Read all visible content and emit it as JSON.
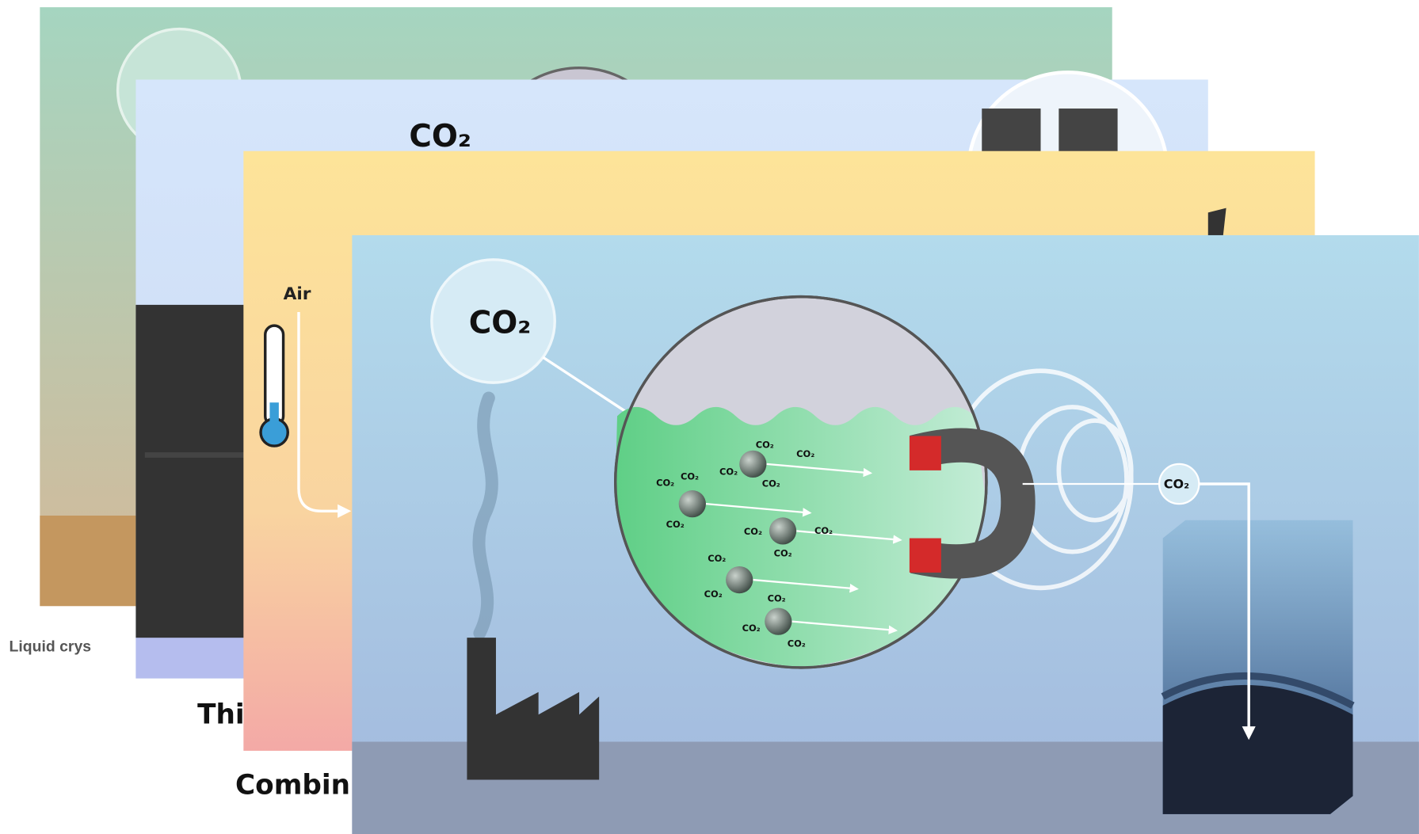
{
  "captions": [
    "Liquid crys",
    "Thi",
    "Combin"
  ],
  "card2": {
    "label": "CO₂"
  },
  "card3": {
    "label": "Air"
  },
  "main": {
    "bubble_label": "CO₂",
    "stream_label": "CO₂",
    "molecule_labels": [
      "CO₂",
      "CO₂",
      "CO₂",
      "CO₂",
      "CO₂",
      "CO₂",
      "CO₂",
      "CO₂",
      "CO₂",
      "CO₂",
      "CO₂",
      "CO₂",
      "CO₂",
      "CO₂",
      "CO₂"
    ]
  }
}
